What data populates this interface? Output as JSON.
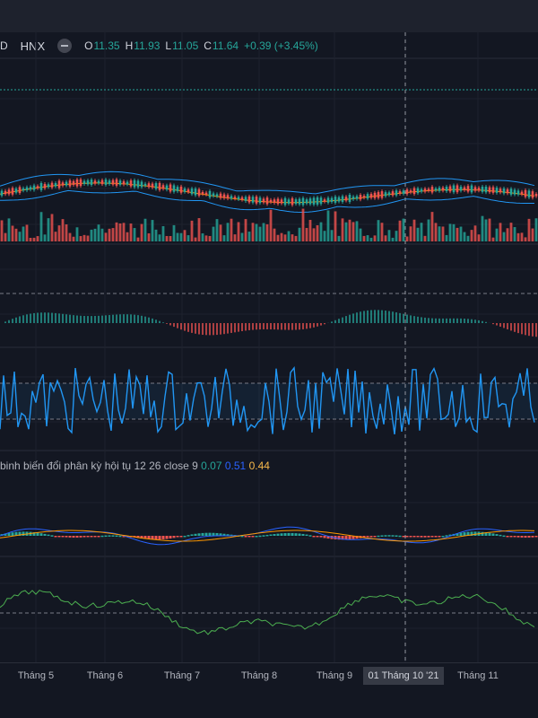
{
  "header": {
    "symbol_fragment": "D",
    "exchange": "HNX",
    "ohlc": [
      {
        "label": "O",
        "value": "11.35"
      },
      {
        "label": "H",
        "value": "11.93"
      },
      {
        "label": "L",
        "value": "11.05"
      },
      {
        "label": "C",
        "value": "11.64"
      }
    ],
    "change": "+0.39 (+3.45%)",
    "up_color": "#26a69a",
    "down_color": "#ef5350"
  },
  "macd": {
    "title": "binh biến đổi phân kỳ hội tụ 12 26 close 9",
    "values": [
      "0.07",
      "0.51",
      "0.44"
    ]
  },
  "time_axis": {
    "ticks": [
      "Tháng 5",
      "Tháng 6",
      "Tháng 7",
      "Tháng 8",
      "Tháng 9",
      "Tháng 11"
    ],
    "crosshair_label": "01 Tháng 10 '21"
  },
  "colors": {
    "background": "#131722",
    "up": "#26a69a",
    "down": "#ef5350",
    "bollinger": "#2196f3",
    "ma": "#ff9800",
    "rsi": "#2196f3",
    "macd_line": "#2962ff",
    "signal_line": "#ff9800",
    "bottom_indicator": "#4caf50"
  }
}
